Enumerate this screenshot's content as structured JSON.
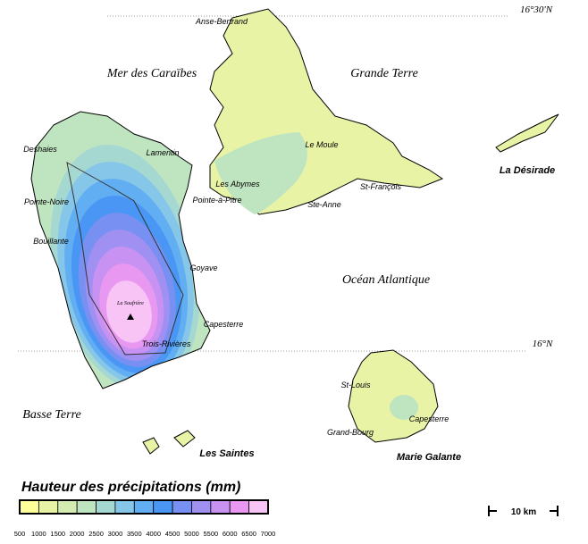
{
  "latitudes": [
    "16°30'N",
    "16°N"
  ],
  "seas": [
    "Mer des Caraïbes",
    "Océan Atlantique"
  ],
  "islands": [
    "Grande Terre",
    "Basse Terre",
    "La Désirade",
    "Les Saintes",
    "Marie Galante"
  ],
  "places": [
    "Anse-Bertrand",
    "Deshaies",
    "Lamentin",
    "Le Moule",
    "Les Abymes",
    "Pointe-à-Pitre",
    "St-François",
    "Ste-Anne",
    "Pointe-Noire",
    "Bouillante",
    "Goyave",
    "La Soufrière",
    "Capesterre",
    "Trois-Rivières",
    "St-Louis",
    "Capesterre",
    "Grand-Bourg"
  ],
  "legend": {
    "title": "Hauteur des précipitations (mm)",
    "breaks": [
      500,
      1000,
      1500,
      2000,
      2500,
      3000,
      3500,
      4000,
      4500,
      5000,
      5500,
      6000,
      6500,
      7000
    ],
    "colors": [
      "#ffff99",
      "#e8f3a6",
      "#d4ecb2",
      "#bfe4c0",
      "#a6d8d2",
      "#86c6e8",
      "#62aef2",
      "#4a96f4",
      "#7890f2",
      "#a090f2",
      "#c892f2",
      "#e898f0",
      "#f8c4f6"
    ]
  },
  "scale": "10 km"
}
